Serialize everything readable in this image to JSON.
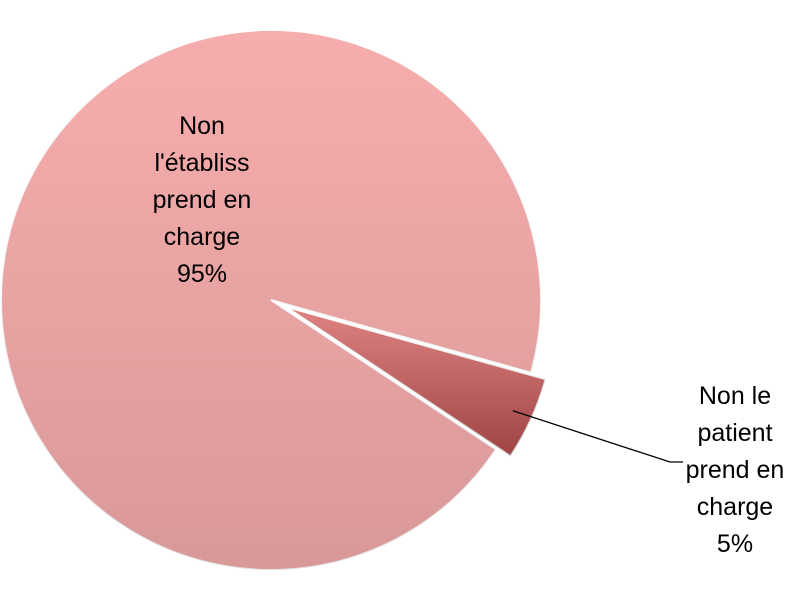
{
  "chart_data": {
    "type": "pie",
    "categories": [
      "Non l'établiss prend en charge",
      "Non le patient prend en charge"
    ],
    "values": [
      95,
      5
    ],
    "value_labels": [
      "95%",
      "5%"
    ],
    "colors": [
      "#f7adad",
      "#d45a5a"
    ]
  }
}
